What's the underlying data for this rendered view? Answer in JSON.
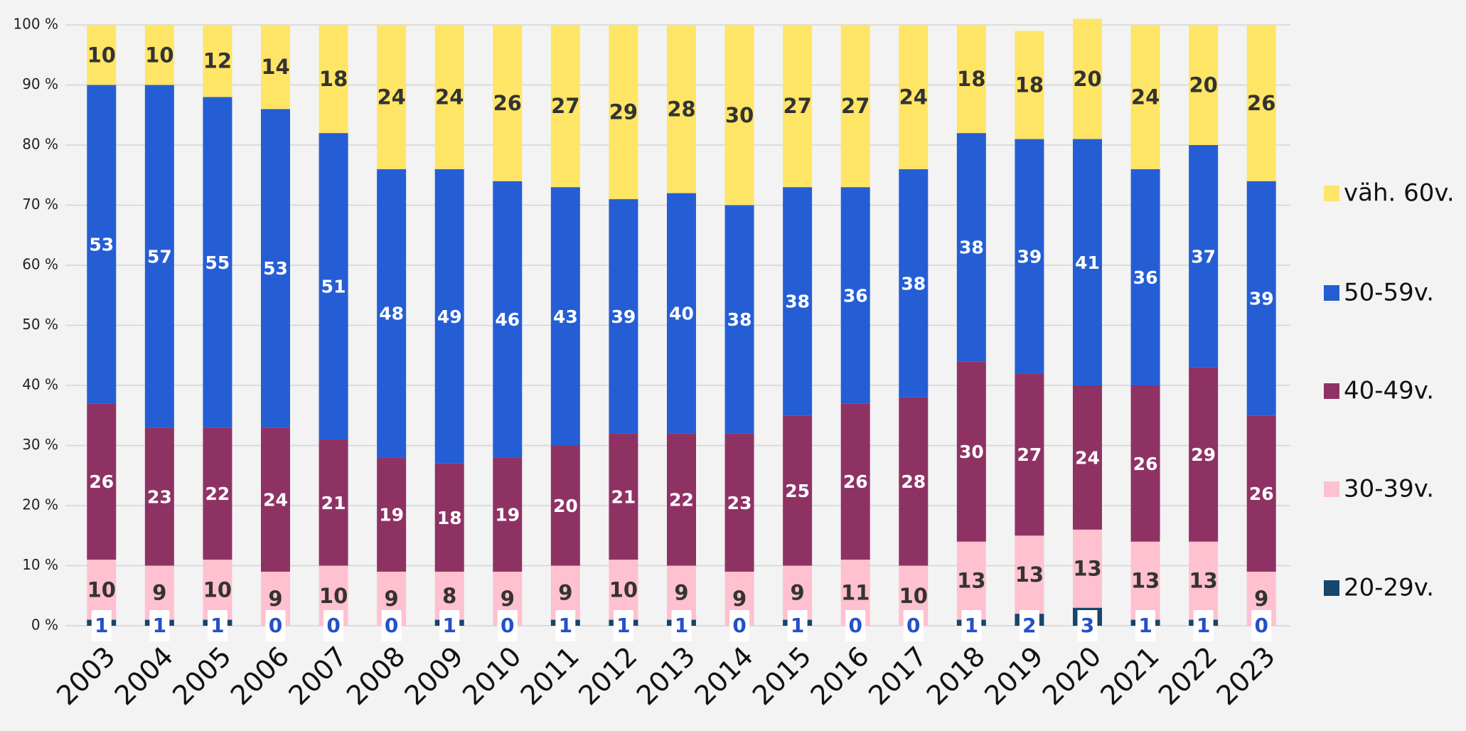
{
  "chart_data": {
    "type": "stacked-bar",
    "categories": [
      "2003",
      "2004",
      "2005",
      "2006",
      "2007",
      "2008",
      "2009",
      "2010",
      "2011",
      "2012",
      "2013",
      "2014",
      "2015",
      "2016",
      "2017",
      "2018",
      "2019",
      "2020",
      "2021",
      "2022",
      "2023"
    ],
    "series": [
      {
        "name": "20-29v.",
        "color": "#17456b",
        "values": [
          1,
          1,
          1,
          0,
          0,
          0,
          1,
          0,
          1,
          1,
          1,
          0,
          1,
          0,
          0,
          1,
          2,
          3,
          1,
          1,
          0
        ]
      },
      {
        "name": "30-39v.",
        "color": "#ffc0cf",
        "values": [
          10,
          9,
          10,
          9,
          10,
          9,
          8,
          9,
          9,
          10,
          9,
          9,
          9,
          11,
          10,
          13,
          13,
          13,
          13,
          13,
          9
        ]
      },
      {
        "name": "40-49v.",
        "color": "#8e3264",
        "values": [
          26,
          23,
          22,
          24,
          21,
          19,
          18,
          19,
          20,
          21,
          22,
          23,
          25,
          26,
          28,
          30,
          27,
          24,
          26,
          29,
          26
        ]
      },
      {
        "name": "50-59v.",
        "color": "#255ed4",
        "values": [
          53,
          57,
          55,
          53,
          51,
          48,
          49,
          46,
          43,
          39,
          40,
          38,
          38,
          36,
          38,
          38,
          39,
          41,
          36,
          37,
          39
        ]
      },
      {
        "name": "väh. 60v.",
        "color": "#ffe566",
        "values": [
          10,
          10,
          12,
          14,
          18,
          24,
          24,
          26,
          27,
          29,
          28,
          30,
          27,
          27,
          24,
          18,
          18,
          20,
          24,
          20,
          26
        ]
      }
    ],
    "ylim": [
      0,
      100
    ],
    "yticks": [
      {
        "value": 0,
        "label": "0 %"
      },
      {
        "value": 10,
        "label": "10 %"
      },
      {
        "value": 20,
        "label": "20 %"
      },
      {
        "value": 30,
        "label": "30 %"
      },
      {
        "value": 40,
        "label": "40 %"
      },
      {
        "value": 50,
        "label": "50 %"
      },
      {
        "value": 60,
        "label": "60 %"
      },
      {
        "value": 70,
        "label": "70 %"
      },
      {
        "value": 80,
        "label": "80 %"
      },
      {
        "value": 90,
        "label": "90 %"
      },
      {
        "value": 100,
        "label": "100 %"
      }
    ],
    "grid": true
  }
}
